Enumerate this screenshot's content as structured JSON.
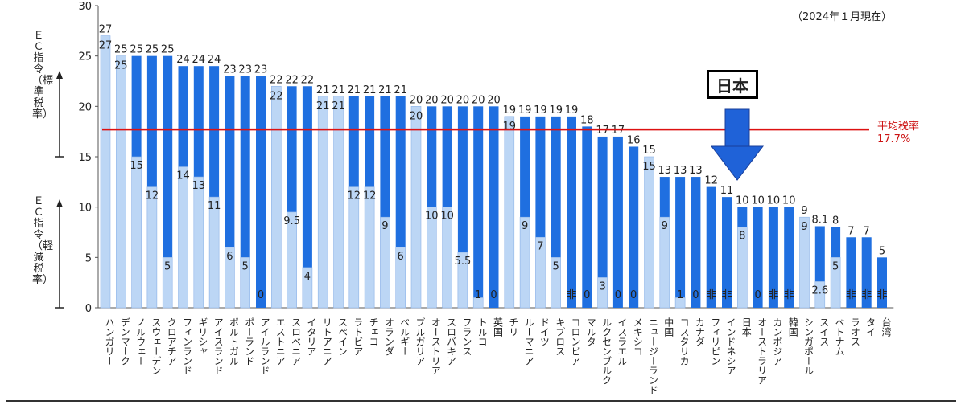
{
  "note": "（2024年１月現在）",
  "ec_label_standard": "ＥＣ指令（標準税率）",
  "ec_label_reduced": "ＥＣ指令（軽減税率）",
  "japan_callout": "日本",
  "average_label": [
    "平均税率",
    "17.7%"
  ],
  "colors": {
    "standard_bar": "#1f6fe0",
    "reduced_bar": "#bcd6f5",
    "bar_border": "#8fb5e8",
    "average_line": "#dd1111",
    "arrow": "#1f62d8"
  },
  "chart_data": {
    "type": "bar",
    "ylim": [
      0,
      30
    ],
    "yticks": [
      0,
      5,
      10,
      15,
      20,
      25,
      30
    ],
    "average": 17.7,
    "categories": [
      "ハンガリー",
      "デンマーク",
      "ノルウェー",
      "スウェーデン",
      "クロアチア",
      "フィンランド",
      "ギリシャ",
      "アイスランド",
      "ポルトガル",
      "ポーランド",
      "アイルランド",
      "エストニア",
      "スロベニア",
      "イタリア",
      "リトアニア",
      "スペイン",
      "ラトビア",
      "チェコ",
      "オランダ",
      "ベルギー",
      "ブルガリア",
      "オーストリア",
      "スロバキア",
      "フランス",
      "トルコ",
      "英国",
      "チリ",
      "ルーマニア",
      "ドイツ",
      "キプロス",
      "コロンビア",
      "マルタ",
      "ルクセンブルク",
      "イスラエル",
      "メキシコ",
      "ニュージーランド",
      "中国",
      "コスタリカ",
      "カナダ",
      "フィリピン",
      "インドネシア",
      "日本",
      "オーストラリア",
      "カンボジア",
      "韓国",
      "シンガポール",
      "スイス",
      "ベトナム",
      "ラオス",
      "タイ",
      "台湾"
    ],
    "series": [
      {
        "name": "標準税率",
        "values": [
          27,
          25,
          25,
          25,
          25,
          24,
          24,
          24,
          23,
          23,
          23,
          22,
          22,
          22,
          21,
          21,
          21,
          21,
          21,
          21,
          20,
          20,
          20,
          20,
          20,
          20,
          19,
          19,
          19,
          19,
          19,
          18,
          17,
          17,
          16,
          15,
          13,
          13,
          13,
          12,
          11,
          10,
          10,
          10,
          10,
          9,
          8.1,
          8,
          7,
          7,
          5
        ]
      },
      {
        "name": "軽減税率",
        "values": [
          27,
          25,
          15,
          12,
          5,
          14,
          13,
          11,
          6,
          5,
          0,
          22,
          9.5,
          4,
          21,
          21,
          12,
          12,
          9,
          6,
          20,
          10,
          10,
          5.5,
          1,
          0,
          19,
          9,
          7,
          5,
          "非",
          0,
          3,
          0,
          0,
          15,
          9,
          1,
          0,
          "非",
          "非",
          8,
          0,
          "非",
          "非",
          9,
          2.6,
          5,
          "非",
          "非",
          "非"
        ]
      }
    ]
  }
}
